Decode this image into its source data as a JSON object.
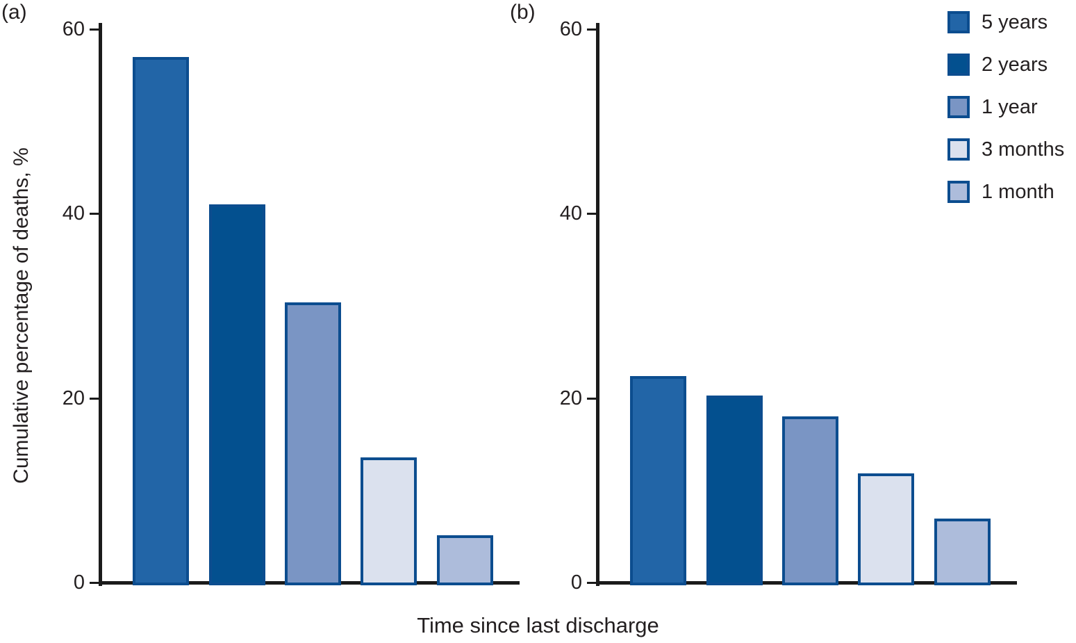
{
  "figure": {
    "panel_a_label": "(a)",
    "panel_b_label": "(b)",
    "y_axis_label": "Cumulative percentage of deaths, %",
    "x_axis_label": "Time since last discharge"
  },
  "colors": {
    "bar_border": "#0c4d8f",
    "axis": "#1b1b1b",
    "text": "#231f20"
  },
  "legend": {
    "position": "top-right",
    "items": [
      {
        "label": "5 years",
        "color": "#2265a7"
      },
      {
        "label": "2 years",
        "color": "#03508f"
      },
      {
        "label": "1 year",
        "color": "#7a95c4"
      },
      {
        "label": "3 months",
        "color": "#dbe1ee"
      },
      {
        "label": "1 month",
        "color": "#adbcdb"
      }
    ]
  },
  "chart_data": [
    {
      "type": "bar",
      "panel_label": "(a)",
      "categories": [
        "5 years",
        "2 years",
        "1 year",
        "3 months",
        "1 month"
      ],
      "values": [
        57,
        41,
        30.4,
        13.6,
        5.1
      ],
      "title": "",
      "xlabel": "Time since last discharge",
      "ylabel": "Cumulative percentage of deaths, %",
      "ylim": [
        0,
        60
      ],
      "yticks": [
        0,
        20,
        40,
        60
      ],
      "grid": false
    },
    {
      "type": "bar",
      "panel_label": "(b)",
      "categories": [
        "5 years",
        "2 years",
        "1 year",
        "3 months",
        "1 month"
      ],
      "values": [
        22.4,
        20.3,
        18,
        11.8,
        6.9
      ],
      "title": "",
      "xlabel": "Time since last discharge",
      "ylabel": "Cumulative percentage of deaths, %",
      "ylim": [
        0,
        60
      ],
      "yticks": [
        0,
        20,
        40,
        60
      ],
      "grid": false
    }
  ]
}
